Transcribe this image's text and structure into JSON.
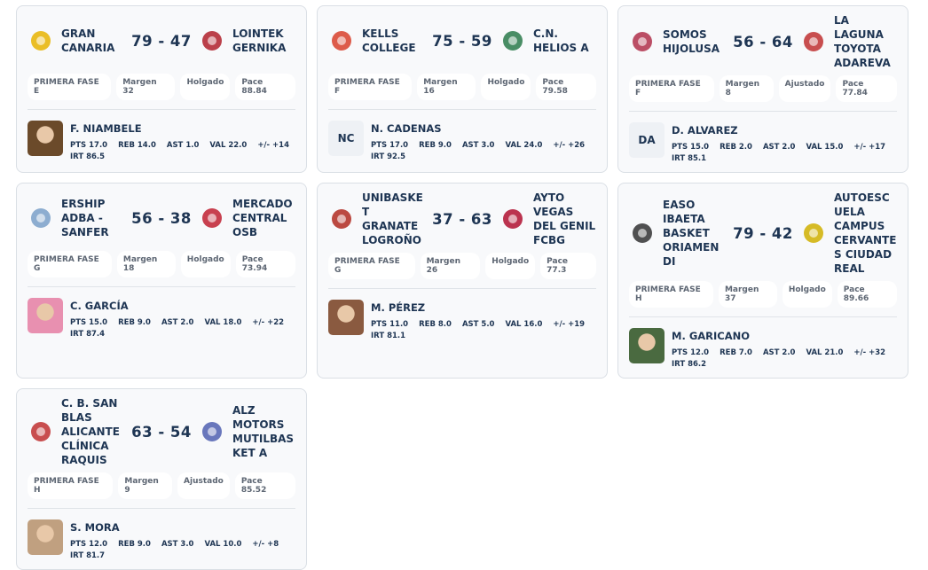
{
  "games": [
    {
      "home": "GRAN CANARIA",
      "score": "79 - 47",
      "away": "LOINTEK GERNIKA",
      "tags": [
        "PRIMERA FASE E",
        "Margen 32",
        "Holgado",
        "Pace 88.84"
      ],
      "player": {
        "name": "F. NIAMBELE",
        "stats": [
          "PTS 17.0",
          "REB 14.0",
          "AST 1.0",
          "VAL 22.0",
          "+/- +14"
        ],
        "irt": "IRT 86.5"
      }
    },
    {
      "home": "KELLS COLLEGE",
      "score": "75 - 59",
      "away": "C.N. HELIOS A",
      "tags": [
        "PRIMERA FASE F",
        "Margen 16",
        "Holgado",
        "Pace 79.58"
      ],
      "player": {
        "initials": "NC",
        "name": "N. CADENAS",
        "stats": [
          "PTS 17.0",
          "REB 9.0",
          "AST 3.0",
          "VAL 24.0",
          "+/- +26"
        ],
        "irt": "IRT 92.5"
      }
    },
    {
      "home": "SOMOS HIJOLUSA",
      "score": "56 - 64",
      "away": "LA LAGUNA TOYOTA ADAREVA",
      "tags": [
        "PRIMERA FASE F",
        "Margen 8",
        "Ajustado",
        "Pace 77.84"
      ],
      "player": {
        "initials": "DA",
        "name": "D. ALVAREZ",
        "stats": [
          "PTS 15.0",
          "REB 2.0",
          "AST 2.0",
          "VAL 15.0",
          "+/- +17"
        ],
        "irt": "IRT 85.1"
      }
    },
    {
      "home": "ERSHIP ADBA - SANFER",
      "score": "56 - 38",
      "away": "MERCADO CENTRAL OSB",
      "tags": [
        "PRIMERA FASE G",
        "Margen 18",
        "Holgado",
        "Pace 73.94"
      ],
      "player": {
        "name": "C. GARCÍA",
        "stats": [
          "PTS 15.0",
          "REB 9.0",
          "AST 2.0",
          "VAL 18.0",
          "+/- +22"
        ],
        "irt": "IRT 87.4"
      }
    },
    {
      "home": "UNIBASKET GRANATE LOGROÑO",
      "score": "37 - 63",
      "away": "AYTO VEGAS DEL GENIL FCBG",
      "tags": [
        "PRIMERA FASE G",
        "Margen 26",
        "Holgado",
        "Pace 77.3"
      ],
      "player": {
        "name": "M. PÉREZ",
        "stats": [
          "PTS 11.0",
          "REB 8.0",
          "AST 5.0",
          "VAL 16.0",
          "+/- +19"
        ],
        "irt": "IRT 81.1"
      }
    },
    {
      "home": "EASO IBAETA BASKET ORIAMENDI",
      "score": "79 - 42",
      "away": "AUTOESCUELA CAMPUS CERVANTES CIUDAD REAL",
      "tags": [
        "PRIMERA FASE H",
        "Margen 37",
        "Holgado",
        "Pace 89.66"
      ],
      "player": {
        "name": "M. GARICANO",
        "stats": [
          "PTS 12.0",
          "REB 7.0",
          "AST 2.0",
          "VAL 21.0",
          "+/- +32"
        ],
        "irt": "IRT 86.2"
      }
    },
    {
      "home": "C. B. SAN BLAS ALICANTE CLÍNICA RAQUIS",
      "score": "63 - 54",
      "away": "ALZ MOTORS MUTILBASKET A",
      "tags": [
        "PRIMERA FASE H",
        "Margen 9",
        "Ajustado",
        "Pace 85.52"
      ],
      "player": {
        "name": "S. MORA",
        "stats": [
          "PTS 12.0",
          "REB 9.0",
          "AST 3.0",
          "VAL 10.0",
          "+/- +8"
        ],
        "irt": "IRT 81.7"
      }
    }
  ]
}
